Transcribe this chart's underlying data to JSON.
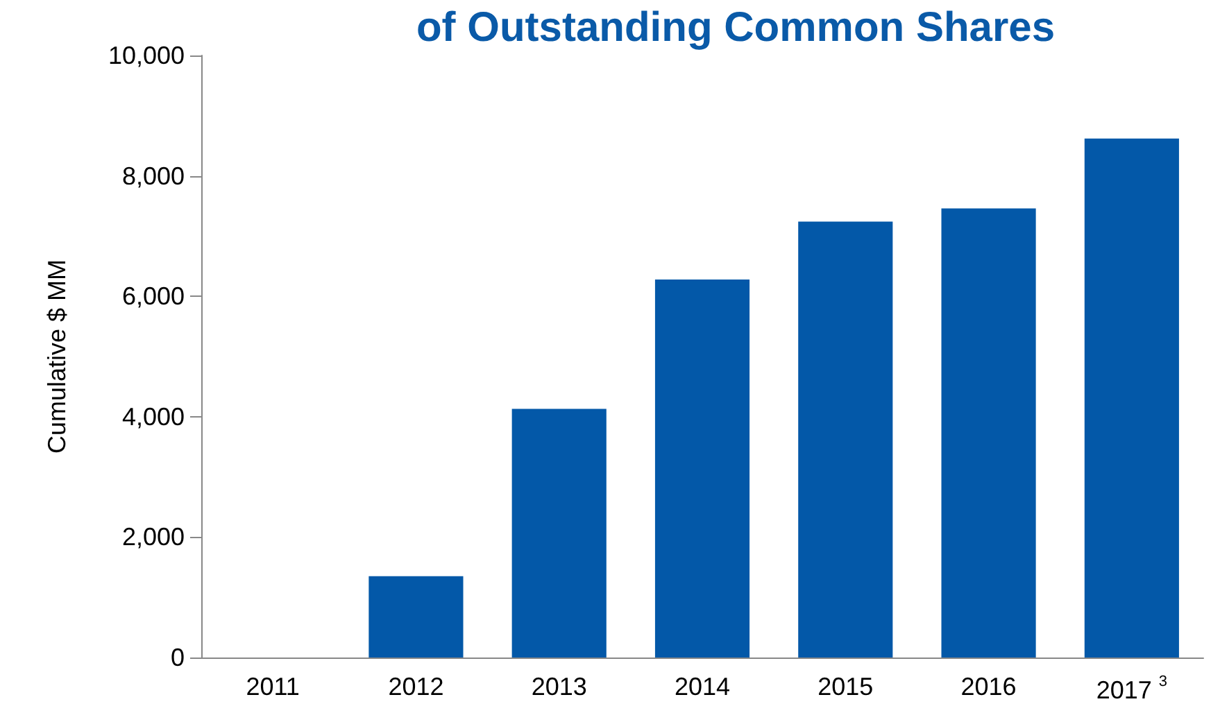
{
  "chart_data": {
    "type": "bar",
    "title": "of Outstanding Common Shares",
    "ylabel": "Cumulative $ MM",
    "categories": [
      "2011",
      "2012",
      "2013",
      "2014",
      "2015",
      "2016",
      "2017$^{3}$"
    ],
    "values": [
      0,
      1350,
      4130,
      6280,
      7240,
      7460,
      8620
    ],
    "color": "#0358a8",
    "ylim": [
      0,
      10000
    ],
    "yticks": [
      0,
      {
        "value": 2000,
        "label": "2,000"
      },
      {
        "value": 4000,
        "label": "4,000"
      },
      {
        "value": 6000,
        "label": "6,000"
      },
      {
        "value": 8000,
        "label": "8,000"
      },
      {
        "value": 10000,
        "label": "10,000"
      }
    ],
    "grid": false
  }
}
